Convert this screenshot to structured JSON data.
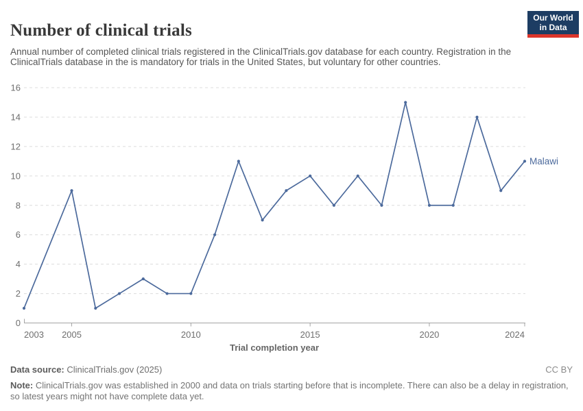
{
  "header": {
    "title": "Number of clinical trials",
    "subtitle": "Annual number of completed clinical trials registered in the ClinicalTrials.gov database for each country. Registration in the ClinicalTrials database in the is mandatory for trials in the United States, but voluntary for other countries.",
    "logo": {
      "line1": "Our World",
      "line2": "in Data",
      "bg_color": "#1d3d63",
      "bar_color": "#dc352b"
    }
  },
  "chart_data": {
    "type": "line",
    "title": "Number of clinical trials",
    "xlabel": "Trial completion year",
    "ylabel": "",
    "xlim": [
      2003,
      2024
    ],
    "ylim": [
      0,
      16
    ],
    "y_ticks": [
      0,
      2,
      4,
      6,
      8,
      10,
      12,
      14,
      16
    ],
    "x_ticks": [
      2003,
      2005,
      2010,
      2015,
      2020,
      2024
    ],
    "grid": "horizontal-dashed",
    "legend_position": "end-of-line-label",
    "series": [
      {
        "name": "Malawi",
        "color": "#4C6A9C",
        "points": [
          [
            2003,
            1
          ],
          [
            2005,
            9
          ],
          [
            2006,
            1
          ],
          [
            2007,
            2
          ],
          [
            2008,
            3
          ],
          [
            2009,
            2
          ],
          [
            2010,
            2
          ],
          [
            2011,
            6
          ],
          [
            2012,
            11
          ],
          [
            2013,
            7
          ],
          [
            2014,
            9
          ],
          [
            2015,
            10
          ],
          [
            2016,
            8
          ],
          [
            2017,
            10
          ],
          [
            2018,
            8
          ],
          [
            2019,
            15
          ],
          [
            2020,
            8
          ],
          [
            2021,
            8
          ],
          [
            2022,
            14
          ],
          [
            2023,
            9
          ],
          [
            2024,
            11
          ]
        ]
      }
    ],
    "colors": {
      "grid": "#dcdcdc",
      "axis": "#a3a3a3",
      "tick_text": "#6e6e6e"
    }
  },
  "footer": {
    "source_label": "Data source:",
    "source_value": "ClinicalTrials.gov (2025)",
    "license": "CC BY",
    "note_label": "Note:",
    "note_value": "ClinicalTrials.gov was established in 2000 and data on trials starting before that is incomplete. There can also be a delay in registration, so latest years might not have complete data yet."
  }
}
